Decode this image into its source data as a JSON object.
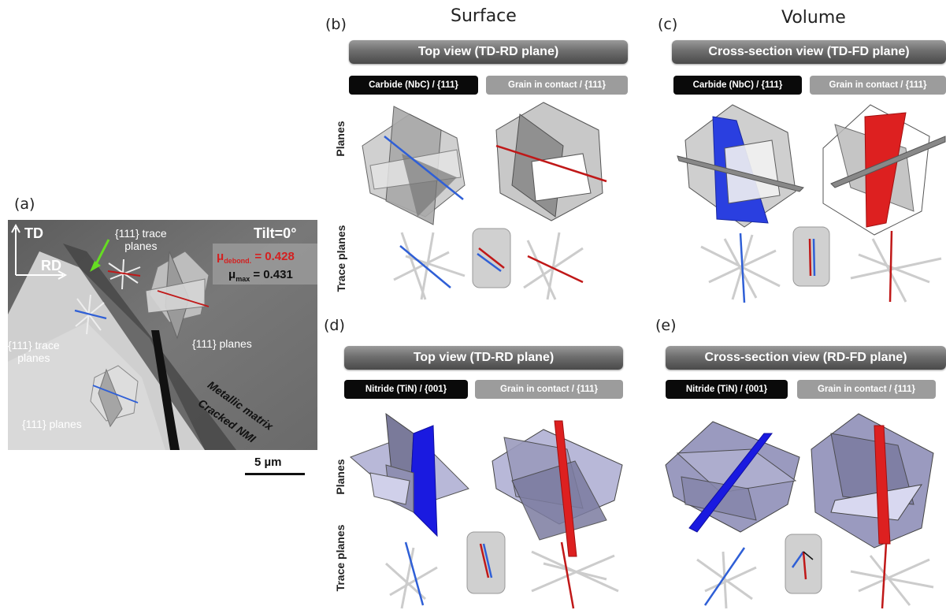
{
  "panel_a": {
    "letter": "(a)",
    "td": "TD",
    "rd": "RD",
    "tilt": "Tilt=0°",
    "mu_debond_main": "μ",
    "mu_debond_sub": "debond.",
    "mu_debond_value": "= 0.428",
    "mu_max_main": "μ",
    "mu_max_sub": "max",
    "mu_max_value": "= 0.431",
    "trace_label_top_1": "{111} trace",
    "trace_label_top_2": "planes",
    "trace_label_left_1": "{111} trace",
    "trace_label_left_2": "planes",
    "planes_label_right": "{111} planes",
    "planes_label_bottom": "{111} planes",
    "matrix_label": "Metallic matrix",
    "nmi_label": "Cracked NMI",
    "scale_label": "5 µm"
  },
  "columns": {
    "surface": "Surface",
    "volume": "Volume"
  },
  "row_labels": {
    "planes": "Planes",
    "trace_planes": "Trace planes"
  },
  "panel_b": {
    "letter": "(b)",
    "banner": "Top view (TD-RD plane)",
    "tag_left": "Carbide (NbC) / {111}",
    "tag_right": "Grain in contact / {111}"
  },
  "panel_c": {
    "letter": "(c)",
    "banner": "Cross-section view (TD-FD plane)",
    "tag_left": "Carbide (NbC) / {111}",
    "tag_right": "Grain in contact / {111}"
  },
  "panel_d": {
    "letter": "(d)",
    "banner": "Top view (TD-RD plane)",
    "tag_left": "Nitride (TiN) / {001}",
    "tag_right": "Grain in contact / {111}"
  },
  "panel_e": {
    "letter": "(e)",
    "banner": "Cross-section view (RD-FD plane)",
    "tag_left": "Nitride (TiN) / {001}",
    "tag_right": "Grain in contact / {111}"
  },
  "colors": {
    "carbide_trace": "#2f5fd6",
    "matrix_trace": "#c01818",
    "mu_debond": "#d42020",
    "arrow": "#66dd22",
    "nitride_fill": "#1a1ae0",
    "grain_fill_lilac": "#b8b8d8"
  }
}
